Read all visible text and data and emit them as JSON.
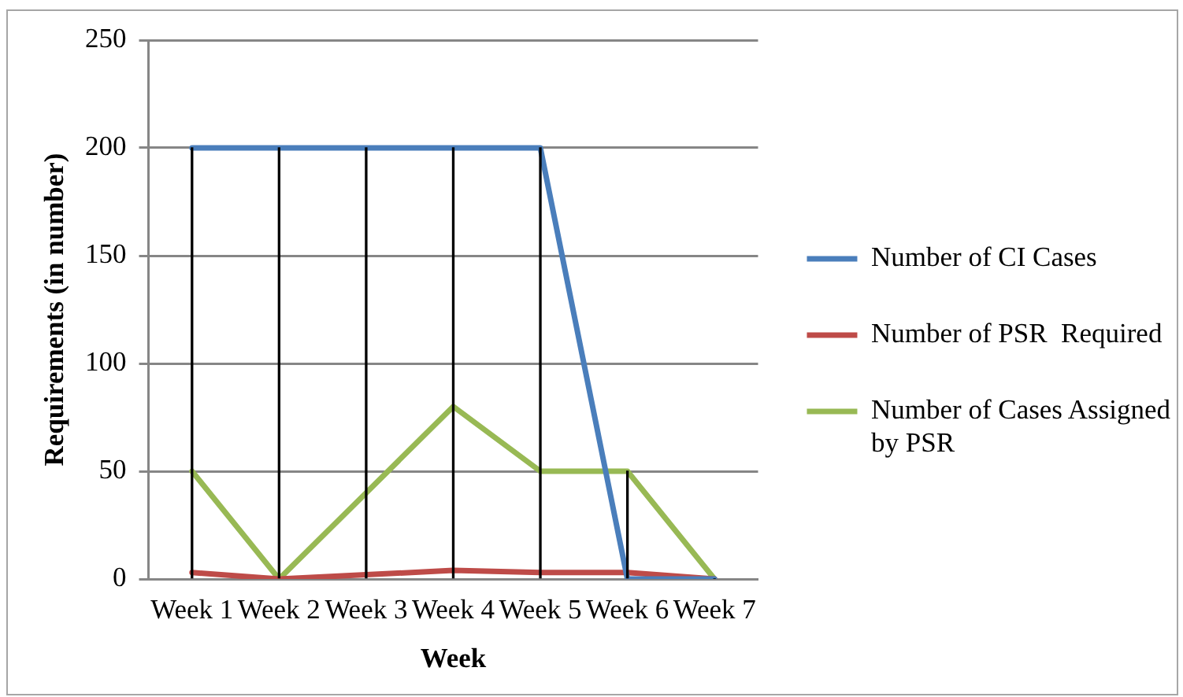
{
  "chart_data": {
    "type": "line",
    "xlabel": "Week",
    "ylabel": "Requirements (in number)",
    "categories": [
      "Week 1",
      "Week 2",
      "Week 3",
      "Week 4",
      "Week 5",
      "Week 6",
      "Week 7"
    ],
    "series": [
      {
        "name": "Number of CI Cases",
        "color": "#4a7ebb",
        "values": [
          200,
          200,
          200,
          200,
          200,
          0,
          0
        ]
      },
      {
        "name": "Number of PSR  Required",
        "color": "#be4b48",
        "values": [
          3,
          0,
          2,
          4,
          3,
          3,
          0
        ]
      },
      {
        "name": "Number of Cases Assigned by PSR",
        "color": "#98b954",
        "values": [
          50,
          0,
          40,
          80,
          50,
          50,
          0
        ]
      },
      {
        "type": "bar",
        "color": "#000000",
        "values": [
          200,
          200,
          200,
          200,
          200,
          50,
          0
        ]
      }
    ],
    "ylim": [
      0,
      250
    ],
    "yticks": [
      0,
      50,
      100,
      150,
      200,
      250
    ],
    "grid": "y",
    "legend": "right",
    "marker": "none",
    "line_style": "solid"
  }
}
